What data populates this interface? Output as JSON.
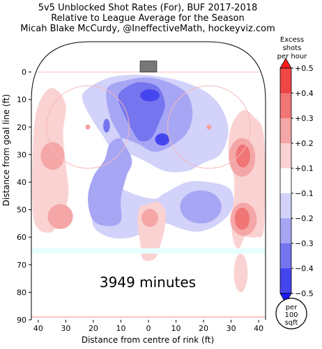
{
  "chart_data": {
    "type": "heatmap",
    "title_lines": [
      "5v5 Unblocked Shot Rates (For), BUF 2017-2018",
      "Relative to League Average for the Season",
      "Micah Blake McCurdy, @IneffectiveMath, hockeyviz.com"
    ],
    "xlabel": "Distance from centre of rink (ft)",
    "ylabel": "Distance from goal line (ft)",
    "xlim": [
      42.5,
      -42.5
    ],
    "ylim": [
      -11,
      90
    ],
    "x_ticks": [
      40,
      30,
      20,
      10,
      0,
      10,
      20,
      30,
      40
    ],
    "y_ticks": [
      0,
      10,
      20,
      30,
      40,
      50,
      60,
      70,
      80,
      90
    ],
    "annotation": "3949 minutes",
    "colorbar": {
      "title_lines": [
        "Excess",
        "shots",
        "per hour"
      ],
      "levels": [
        -0.5,
        -0.4,
        -0.3,
        -0.2,
        -0.1,
        0.1,
        0.2,
        0.3,
        0.4,
        0.5
      ],
      "tick_labels": [
        "+0.5",
        "+0.4",
        "+0.3",
        "+0.2",
        "+0.1",
        "−0.1",
        "−0.2",
        "−0.3",
        "−0.4",
        "−0.5"
      ],
      "colors": [
        "#1a1aff",
        "#4545f0",
        "#7575f0",
        "#a6a6f5",
        "#d2d2fa",
        "#ffffff",
        "#fbd2d2",
        "#f5a6a6",
        "#f07575",
        "#f04545",
        "#ff1a1a"
      ]
    },
    "unit_badge": [
      "per",
      "100",
      "sqft"
    ],
    "regions": [
      {
        "level": -0.1,
        "shape": "poly",
        "pts": [
          [
            22,
            6
          ],
          [
            14,
            2
          ],
          [
            4,
            1
          ],
          [
            -6,
            2
          ],
          [
            -14,
            4
          ],
          [
            -22,
            8
          ],
          [
            -27,
            14
          ],
          [
            -29,
            22
          ],
          [
            -26,
            30
          ],
          [
            -20,
            33
          ],
          [
            -14,
            36
          ],
          [
            -6,
            36
          ],
          [
            2,
            32
          ],
          [
            8,
            30
          ],
          [
            14,
            34
          ],
          [
            18,
            40
          ],
          [
            20,
            48
          ],
          [
            20,
            56
          ],
          [
            14,
            60
          ],
          [
            6,
            60
          ],
          [
            0,
            57
          ],
          [
            -6,
            55
          ],
          [
            -12,
            57
          ],
          [
            -18,
            58
          ],
          [
            -24,
            56
          ],
          [
            -29,
            52
          ],
          [
            -31,
            47
          ],
          [
            -29,
            42
          ],
          [
            -22,
            40
          ],
          [
            -14,
            40
          ],
          [
            -6,
            44
          ],
          [
            -2,
            46
          ],
          [
            6,
            44
          ],
          [
            12,
            40
          ],
          [
            12,
            32
          ],
          [
            16,
            24
          ],
          [
            20,
            18
          ],
          [
            24,
            10
          ]
        ]
      },
      {
        "level": -0.2,
        "shape": "poly",
        "pts": [
          [
            15,
            6
          ],
          [
            8,
            3
          ],
          [
            0,
            2
          ],
          [
            -8,
            4
          ],
          [
            -14,
            8
          ],
          [
            -16,
            15
          ],
          [
            -14,
            22
          ],
          [
            -8,
            27
          ],
          [
            -2,
            29
          ],
          [
            4,
            26
          ],
          [
            10,
            24
          ],
          [
            14,
            26
          ],
          [
            16,
            32
          ],
          [
            20,
            38
          ],
          [
            22,
            46
          ],
          [
            20,
            54
          ],
          [
            14,
            56
          ],
          [
            10,
            54
          ],
          [
            10,
            46
          ],
          [
            8,
            38
          ],
          [
            6,
            32
          ],
          [
            10,
            24
          ],
          [
            14,
            16
          ]
        ]
      },
      {
        "level": -0.3,
        "shape": "poly",
        "pts": [
          [
            10,
            7
          ],
          [
            5,
            4
          ],
          [
            0,
            4
          ],
          [
            -4,
            6
          ],
          [
            -6,
            12
          ],
          [
            -4,
            18
          ],
          [
            -1,
            24
          ],
          [
            3,
            25
          ],
          [
            6,
            21
          ],
          [
            9,
            15
          ],
          [
            11,
            10
          ]
        ]
      },
      {
        "level": -0.4,
        "shape": "ellipse",
        "cx": -0.5,
        "cy": 8.5,
        "rx": 3.5,
        "ry": 2.2
      },
      {
        "level": -0.4,
        "shape": "ellipse",
        "cx": -5,
        "cy": 24.5,
        "rx": 2.6,
        "ry": 2.2
      },
      {
        "level": -0.3,
        "shape": "ellipse",
        "cx": 15.2,
        "cy": 19.5,
        "rx": 1.2,
        "ry": 2.5
      },
      {
        "level": -0.3,
        "shape": "ellipse",
        "cx": -19.5,
        "cy": 49.5,
        "rx": 4.5,
        "ry": 4
      },
      {
        "level": -0.2,
        "shape": "ellipse",
        "cx": -19,
        "cy": 49,
        "rx": 7.5,
        "ry": 6
      },
      {
        "level": 0.1,
        "shape": "poly",
        "pts": [
          [
            38,
            8
          ],
          [
            34,
            6
          ],
          [
            30,
            12
          ],
          [
            31,
            22
          ],
          [
            30,
            34
          ],
          [
            29,
            44
          ],
          [
            31,
            52
          ],
          [
            35,
            58
          ],
          [
            40,
            57
          ],
          [
            42,
            50
          ],
          [
            42,
            30
          ],
          [
            41,
            16
          ]
        ]
      },
      {
        "level": 0.2,
        "shape": "ellipse",
        "cx": 34.8,
        "cy": 30.5,
        "rx": 4.3,
        "ry": 5
      },
      {
        "level": 0.2,
        "shape": "ellipse",
        "cx": 32,
        "cy": 52.5,
        "rx": 4.6,
        "ry": 4.5
      },
      {
        "level": 0.1,
        "shape": "poly",
        "pts": [
          [
            -38,
            16
          ],
          [
            -34,
            14
          ],
          [
            -30,
            20
          ],
          [
            -29,
            30
          ],
          [
            -31,
            38
          ],
          [
            -31,
            46
          ],
          [
            -30,
            54
          ],
          [
            -31,
            62
          ],
          [
            -33,
            64
          ],
          [
            -35,
            60
          ],
          [
            -39,
            60
          ],
          [
            -42,
            56
          ],
          [
            -42,
            24
          ]
        ]
      },
      {
        "level": 0.2,
        "shape": "ellipse",
        "cx": -34,
        "cy": 31,
        "rx": 4.8,
        "ry": 7
      },
      {
        "level": 0.3,
        "shape": "ellipse",
        "cx": -34.3,
        "cy": 30.5,
        "rx": 2.6,
        "ry": 4.2
      },
      {
        "level": 0.2,
        "shape": "ellipse",
        "cx": -34.5,
        "cy": 53.5,
        "rx": 4.8,
        "ry": 6
      },
      {
        "level": 0.3,
        "shape": "ellipse",
        "cx": -34,
        "cy": 53.3,
        "rx": 2.7,
        "ry": 4
      },
      {
        "level": 0.1,
        "shape": "poly",
        "pts": [
          [
            0,
            48
          ],
          [
            -3,
            47
          ],
          [
            -6,
            50
          ],
          [
            -6,
            56
          ],
          [
            -4,
            64
          ],
          [
            -2,
            68
          ],
          [
            2,
            68
          ],
          [
            3,
            62
          ],
          [
            4,
            54
          ],
          [
            3,
            49
          ]
        ]
      },
      {
        "level": 0.2,
        "shape": "ellipse",
        "cx": -0.5,
        "cy": 53,
        "rx": 3,
        "ry": 3.3
      },
      {
        "level": 0.1,
        "shape": "ellipse",
        "cx": -33.5,
        "cy": 73,
        "rx": 2.5,
        "ry": 7
      }
    ]
  }
}
